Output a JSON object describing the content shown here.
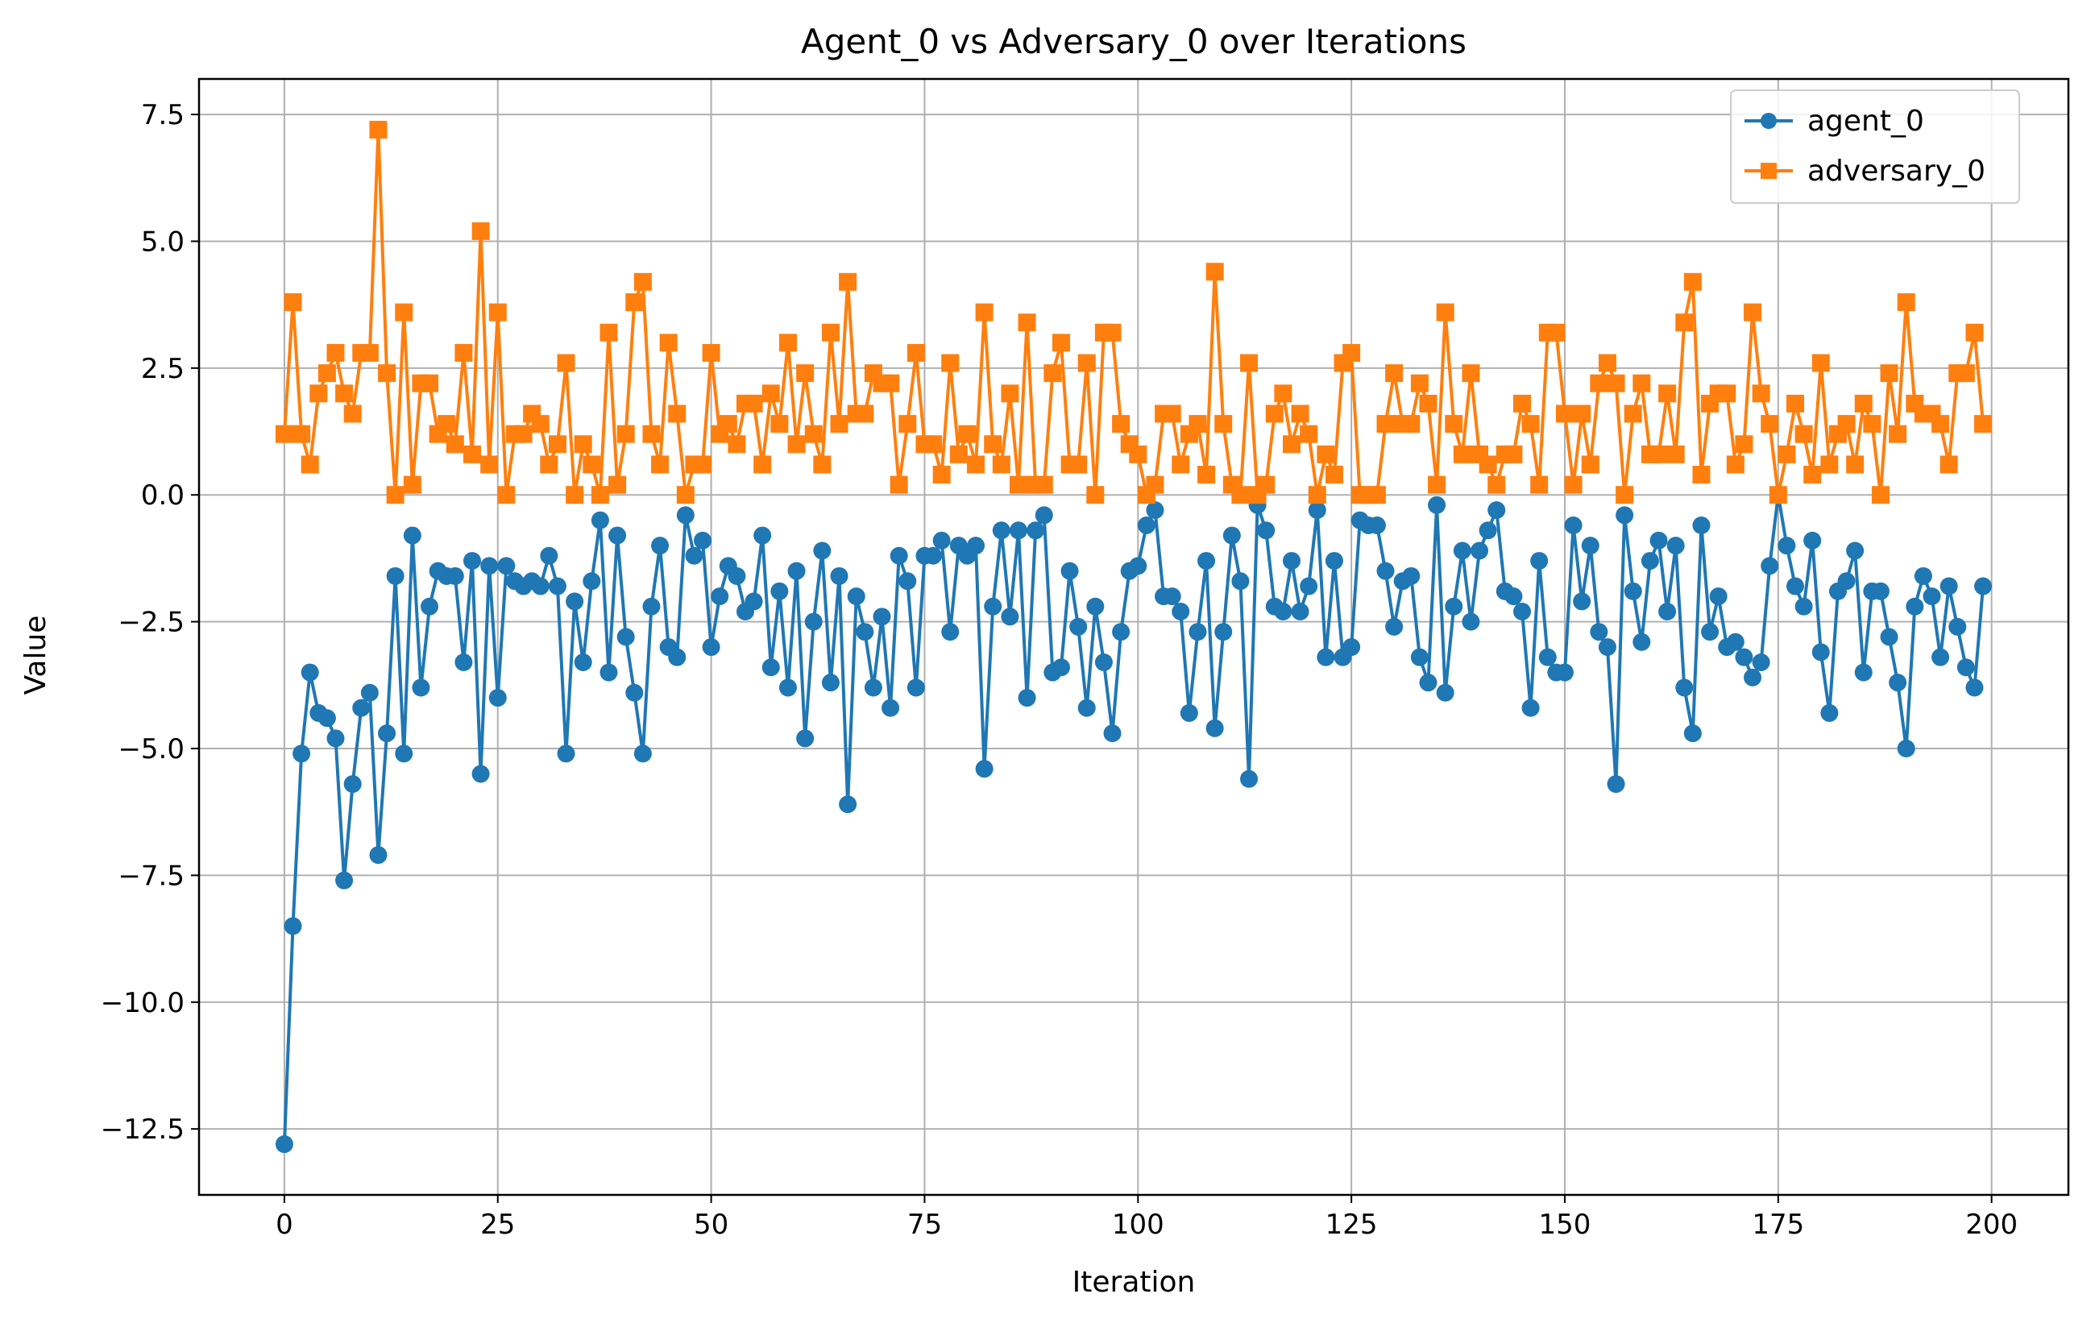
{
  "chart_data": {
    "type": "line",
    "title": "Agent_0 vs Adversary_0 over Iterations",
    "xlabel": "Iteration",
    "ylabel": "Value",
    "xlim": [
      -10,
      209
    ],
    "ylim": [
      -13.8,
      8.2
    ],
    "xticks": [
      0,
      25,
      50,
      75,
      100,
      125,
      150,
      175,
      200
    ],
    "xtick_labels": [
      "0",
      "25",
      "50",
      "75",
      "100",
      "125",
      "150",
      "175",
      "200"
    ],
    "yticks": [
      7.5,
      5.0,
      2.5,
      0.0,
      -2.5,
      -5.0,
      -7.5,
      -10.0,
      -12.5
    ],
    "ytick_labels": [
      "7.5",
      "5.0",
      "2.5",
      "0.0",
      "−2.5",
      "−5.0",
      "−7.5",
      "−10.0",
      "−12.5"
    ],
    "grid": true,
    "legend_position": "top-right",
    "series": [
      {
        "name": "agent_0",
        "color": "#1f77b4",
        "marker": "circle",
        "values": [
          -12.8,
          -8.5,
          -5.1,
          -3.5,
          -4.3,
          -4.4,
          -4.8,
          -7.6,
          -5.7,
          -4.2,
          -3.9,
          -7.1,
          -4.7,
          -1.6,
          -5.1,
          -0.8,
          -3.8,
          -2.2,
          -1.5,
          -1.6,
          -1.6,
          -3.3,
          -1.3,
          -5.5,
          -1.4,
          -4.0,
          -1.4,
          -1.7,
          -1.8,
          -1.7,
          -1.8,
          -1.2,
          -1.8,
          -5.1,
          -2.1,
          -3.3,
          -1.7,
          -0.5,
          -3.5,
          -0.8,
          -2.8,
          -3.9,
          -5.1,
          -2.2,
          -1.0,
          -3.0,
          -3.2,
          -0.4,
          -1.2,
          -0.9,
          -3.0,
          -2.0,
          -1.4,
          -1.6,
          -2.3,
          -2.1,
          -0.8,
          -3.4,
          -1.9,
          -3.8,
          -1.5,
          -4.8,
          -2.5,
          -1.1,
          -3.7,
          -1.6,
          -6.1,
          -2.0,
          -2.7,
          -3.8,
          -2.4,
          -4.2,
          -1.2,
          -1.7,
          -3.8,
          -1.2,
          -1.2,
          -0.9,
          -2.7,
          -1.0,
          -1.2,
          -1.0,
          -5.4,
          -2.2,
          -0.7,
          -2.4,
          -0.7,
          -4.0,
          -0.7,
          -0.4,
          -3.5,
          -3.4,
          -1.5,
          -2.6,
          -4.2,
          -2.2,
          -3.3,
          -4.7,
          -2.7,
          -1.5,
          -1.4,
          -0.6,
          -0.3,
          -2.0,
          -2.0,
          -2.3,
          -4.3,
          -2.7,
          -1.3,
          -4.6,
          -2.7,
          -0.8,
          -1.7,
          -5.6,
          -0.2,
          -0.7,
          -2.2,
          -2.3,
          -1.3,
          -2.3,
          -1.8,
          -0.3,
          -3.2,
          -1.3,
          -3.2,
          -3.0,
          -0.5,
          -0.6,
          -0.6,
          -1.5,
          -2.6,
          -1.7,
          -1.6,
          -3.2,
          -3.7,
          -0.2,
          -3.9,
          -2.2,
          -1.1,
          -2.5,
          -1.1,
          -0.7,
          -0.3,
          -1.9,
          -2.0,
          -2.3,
          -4.2,
          -1.3,
          -3.2,
          -3.5,
          -3.5,
          -0.6,
          -2.1,
          -1.0,
          -2.7,
          -3.0,
          -5.7,
          -0.4,
          -1.9,
          -2.9,
          -1.3,
          -0.9,
          -2.3,
          -1.0,
          -3.8,
          -4.7,
          -0.6,
          -2.7,
          -2.0,
          -3.0,
          -2.9,
          -3.2,
          -3.6,
          -3.3,
          -1.4,
          0.0,
          -1.0,
          -1.8,
          -2.2,
          -0.9,
          -3.1,
          -4.3,
          -1.9,
          -1.7,
          -1.1,
          -3.5,
          -1.9,
          -1.9,
          -2.8,
          -3.7,
          -5.0,
          -2.2,
          -1.6,
          -2.0,
          -3.2,
          -1.8,
          -2.6,
          -3.4,
          -3.8,
          -1.8
        ]
      },
      {
        "name": "adversary_0",
        "color": "#ff7f0e",
        "marker": "square",
        "values": [
          1.2,
          3.8,
          1.2,
          0.6,
          2.0,
          2.4,
          2.8,
          2.0,
          1.6,
          2.8,
          2.8,
          7.2,
          2.4,
          0.0,
          3.6,
          0.2,
          2.2,
          2.2,
          1.2,
          1.4,
          1.0,
          2.8,
          0.8,
          5.2,
          0.6,
          3.6,
          0.0,
          1.2,
          1.2,
          1.6,
          1.4,
          0.6,
          1.0,
          2.6,
          0.0,
          1.0,
          0.6,
          0.0,
          3.2,
          0.2,
          1.2,
          3.8,
          4.2,
          1.2,
          0.6,
          3.0,
          1.6,
          0.0,
          0.6,
          0.6,
          2.8,
          1.2,
          1.4,
          1.0,
          1.8,
          1.8,
          0.6,
          2.0,
          1.4,
          3.0,
          1.0,
          2.4,
          1.2,
          0.6,
          3.2,
          1.4,
          4.2,
          1.6,
          1.6,
          2.4,
          2.2,
          2.2,
          0.2,
          1.4,
          2.8,
          1.0,
          1.0,
          0.4,
          2.6,
          0.8,
          1.2,
          0.6,
          3.6,
          1.0,
          0.6,
          2.0,
          0.2,
          3.4,
          0.2,
          0.2,
          2.4,
          3.0,
          0.6,
          0.6,
          2.6,
          0.0,
          3.2,
          3.2,
          1.4,
          1.0,
          0.8,
          0.0,
          0.2,
          1.6,
          1.6,
          0.6,
          1.2,
          1.4,
          0.4,
          4.4,
          1.4,
          0.2,
          0.0,
          2.6,
          0.0,
          0.2,
          1.6,
          2.0,
          1.0,
          1.6,
          1.2,
          0.0,
          0.8,
          0.4,
          2.6,
          2.8,
          0.0,
          0.0,
          0.0,
          1.4,
          2.4,
          1.4,
          1.4,
          2.2,
          1.8,
          0.2,
          3.6,
          1.4,
          0.8,
          2.4,
          0.8,
          0.6,
          0.2,
          0.8,
          0.8,
          1.8,
          1.4,
          0.2,
          3.2,
          3.2,
          1.6,
          0.2,
          1.6,
          0.6,
          2.2,
          2.6,
          2.2,
          0.0,
          1.6,
          2.2,
          0.8,
          0.8,
          2.0,
          0.8,
          3.4,
          4.2,
          0.4,
          1.8,
          2.0,
          2.0,
          0.6,
          1.0,
          3.6,
          2.0,
          1.4,
          0.0,
          0.8,
          1.8,
          1.2,
          0.4,
          2.6,
          0.6,
          1.2,
          1.4,
          0.6,
          1.8,
          1.4,
          0.0,
          2.4,
          1.2,
          3.8,
          1.8,
          1.6,
          1.6,
          1.4,
          0.6,
          2.4,
          2.4,
          3.2,
          1.4
        ]
      }
    ]
  }
}
